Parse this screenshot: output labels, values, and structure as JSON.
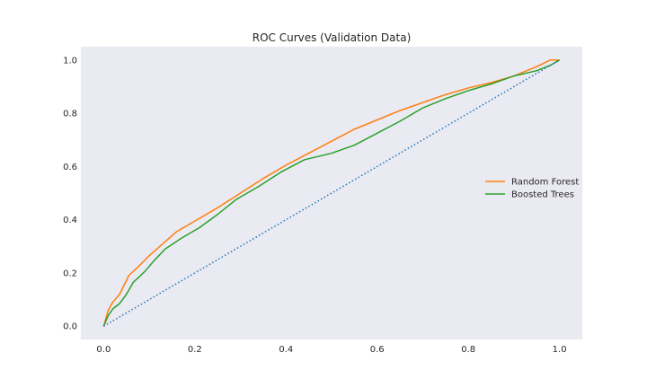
{
  "chart_data": {
    "type": "line",
    "title": "ROC Curves (Validation Data)",
    "xlabel": "",
    "ylabel": "",
    "xlim": [
      -0.05,
      1.05
    ],
    "ylim": [
      -0.05,
      1.05
    ],
    "x_ticks": [
      "0.0",
      "0.2",
      "0.4",
      "0.6",
      "0.8",
      "1.0"
    ],
    "y_ticks": [
      "0.0",
      "0.2",
      "0.4",
      "0.6",
      "0.8",
      "1.0"
    ],
    "x_tick_values": [
      0.0,
      0.2,
      0.4,
      0.6,
      0.8,
      1.0
    ],
    "y_tick_values": [
      0.0,
      0.2,
      0.4,
      0.6,
      0.8,
      1.0
    ],
    "grid": false,
    "background": "#eaeaf2",
    "legend_position": "center-right",
    "series": [
      {
        "name": "Random Forest",
        "color": "#ff7f0e",
        "x": [
          0.0,
          0.01,
          0.02,
          0.035,
          0.055,
          0.08,
          0.1,
          0.13,
          0.16,
          0.2,
          0.25,
          0.3,
          0.35,
          0.4,
          0.45,
          0.5,
          0.55,
          0.6,
          0.65,
          0.7,
          0.75,
          0.8,
          0.85,
          0.9,
          0.95,
          0.98,
          1.0
        ],
        "y": [
          0.0,
          0.06,
          0.09,
          0.12,
          0.19,
          0.23,
          0.265,
          0.31,
          0.355,
          0.395,
          0.445,
          0.5,
          0.555,
          0.605,
          0.65,
          0.695,
          0.74,
          0.775,
          0.81,
          0.84,
          0.87,
          0.895,
          0.915,
          0.94,
          0.975,
          1.0,
          1.0
        ]
      },
      {
        "name": "Boosted Trees",
        "color": "#2ca02c",
        "x": [
          0.0,
          0.01,
          0.02,
          0.035,
          0.05,
          0.065,
          0.09,
          0.11,
          0.135,
          0.17,
          0.21,
          0.25,
          0.29,
          0.34,
          0.39,
          0.44,
          0.5,
          0.55,
          0.6,
          0.65,
          0.7,
          0.75,
          0.8,
          0.85,
          0.9,
          0.95,
          0.98,
          1.0
        ],
        "y": [
          0.0,
          0.04,
          0.065,
          0.085,
          0.12,
          0.165,
          0.205,
          0.245,
          0.29,
          0.33,
          0.37,
          0.42,
          0.475,
          0.525,
          0.58,
          0.625,
          0.65,
          0.68,
          0.725,
          0.77,
          0.82,
          0.855,
          0.885,
          0.91,
          0.94,
          0.96,
          0.98,
          1.0
        ]
      },
      {
        "name": "",
        "color": "#1f77b4",
        "style": "dotted",
        "x": [
          0.0,
          1.0
        ],
        "y": [
          0.0,
          1.0
        ]
      }
    ]
  }
}
